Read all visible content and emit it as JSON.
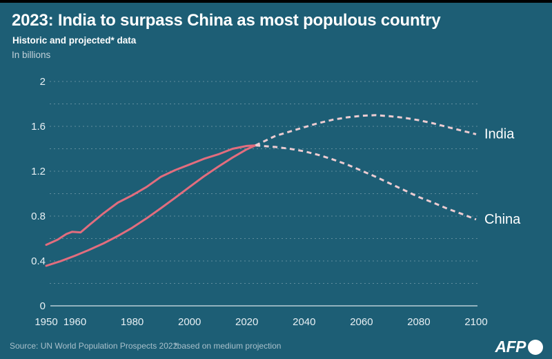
{
  "header": {
    "title": "2023: India to surpass China as most populous country",
    "subtitle": "Historic and projected* data",
    "units": "In billions"
  },
  "footer": {
    "source": "Source: UN World Population Prospects 2022",
    "note": "*based on medium projection",
    "logo": "AFP"
  },
  "colors": {
    "background": "#1d5e75",
    "top_border": "#000000",
    "historic_line": "#e26d7e",
    "projected_line": "#ecccd1",
    "gridline": "rgba(255,255,255,0.30)",
    "axis_line": "#d9e6ec",
    "text_primary": "#ffffff",
    "text_muted": "#a9c0cb"
  },
  "chart_data": {
    "type": "line",
    "title": "2023: India to surpass China as most populous country",
    "subtitle": "Historic and projected* data",
    "ylabel": "In billions",
    "xlabel": "",
    "xlim": [
      1950,
      2100
    ],
    "ylim": [
      0,
      2
    ],
    "grid": "horizontal, every 0.2, dotted",
    "legend_position": "right-of-line-ends",
    "x_ticks": [
      1950,
      1960,
      1980,
      2000,
      2020,
      2040,
      2060,
      2080,
      2100
    ],
    "y_ticks": [
      0,
      0.4,
      0.8,
      1.2,
      1.6,
      2
    ],
    "y_tick_labels": [
      "0",
      "0.4",
      "0.8",
      "1.2",
      "1.6",
      "2"
    ],
    "crossover_note": "India and China lines cross in 2023 at about 1.43 billion",
    "series": [
      {
        "name": "China",
        "label": "China",
        "color": "#e26d7e",
        "projected_color": "#ecccd1",
        "historic": [
          [
            1950,
            0.544
          ],
          [
            1954,
            0.59
          ],
          [
            1957,
            0.64
          ],
          [
            1959,
            0.66
          ],
          [
            1962,
            0.655
          ],
          [
            1965,
            0.72
          ],
          [
            1970,
            0.825
          ],
          [
            1975,
            0.92
          ],
          [
            1980,
            0.985
          ],
          [
            1985,
            1.06
          ],
          [
            1990,
            1.15
          ],
          [
            1995,
            1.21
          ],
          [
            2000,
            1.26
          ],
          [
            2005,
            1.31
          ],
          [
            2010,
            1.35
          ],
          [
            2015,
            1.4
          ],
          [
            2020,
            1.425
          ],
          [
            2023,
            1.43
          ]
        ],
        "projected": [
          [
            2023,
            1.43
          ],
          [
            2030,
            1.416
          ],
          [
            2035,
            1.4
          ],
          [
            2040,
            1.378
          ],
          [
            2045,
            1.345
          ],
          [
            2050,
            1.305
          ],
          [
            2055,
            1.26
          ],
          [
            2060,
            1.205
          ],
          [
            2065,
            1.15
          ],
          [
            2070,
            1.09
          ],
          [
            2075,
            1.03
          ],
          [
            2080,
            0.97
          ],
          [
            2085,
            0.92
          ],
          [
            2090,
            0.866
          ],
          [
            2095,
            0.82
          ],
          [
            2100,
            0.77
          ]
        ]
      },
      {
        "name": "India",
        "label": "India",
        "color": "#e26d7e",
        "projected_color": "#ecccd1",
        "historic": [
          [
            1950,
            0.357
          ],
          [
            1955,
            0.398
          ],
          [
            1960,
            0.446
          ],
          [
            1965,
            0.499
          ],
          [
            1970,
            0.557
          ],
          [
            1975,
            0.623
          ],
          [
            1980,
            0.696
          ],
          [
            1985,
            0.78
          ],
          [
            1990,
            0.87
          ],
          [
            1995,
            0.964
          ],
          [
            2000,
            1.06
          ],
          [
            2005,
            1.154
          ],
          [
            2010,
            1.24
          ],
          [
            2015,
            1.322
          ],
          [
            2020,
            1.396
          ],
          [
            2023,
            1.43
          ]
        ],
        "projected": [
          [
            2023,
            1.43
          ],
          [
            2030,
            1.515
          ],
          [
            2035,
            1.553
          ],
          [
            2040,
            1.592
          ],
          [
            2045,
            1.629
          ],
          [
            2050,
            1.659
          ],
          [
            2055,
            1.68
          ],
          [
            2060,
            1.694
          ],
          [
            2065,
            1.7
          ],
          [
            2070,
            1.69
          ],
          [
            2075,
            1.676
          ],
          [
            2080,
            1.655
          ],
          [
            2085,
            1.627
          ],
          [
            2090,
            1.594
          ],
          [
            2095,
            1.562
          ],
          [
            2100,
            1.53
          ]
        ]
      }
    ]
  }
}
